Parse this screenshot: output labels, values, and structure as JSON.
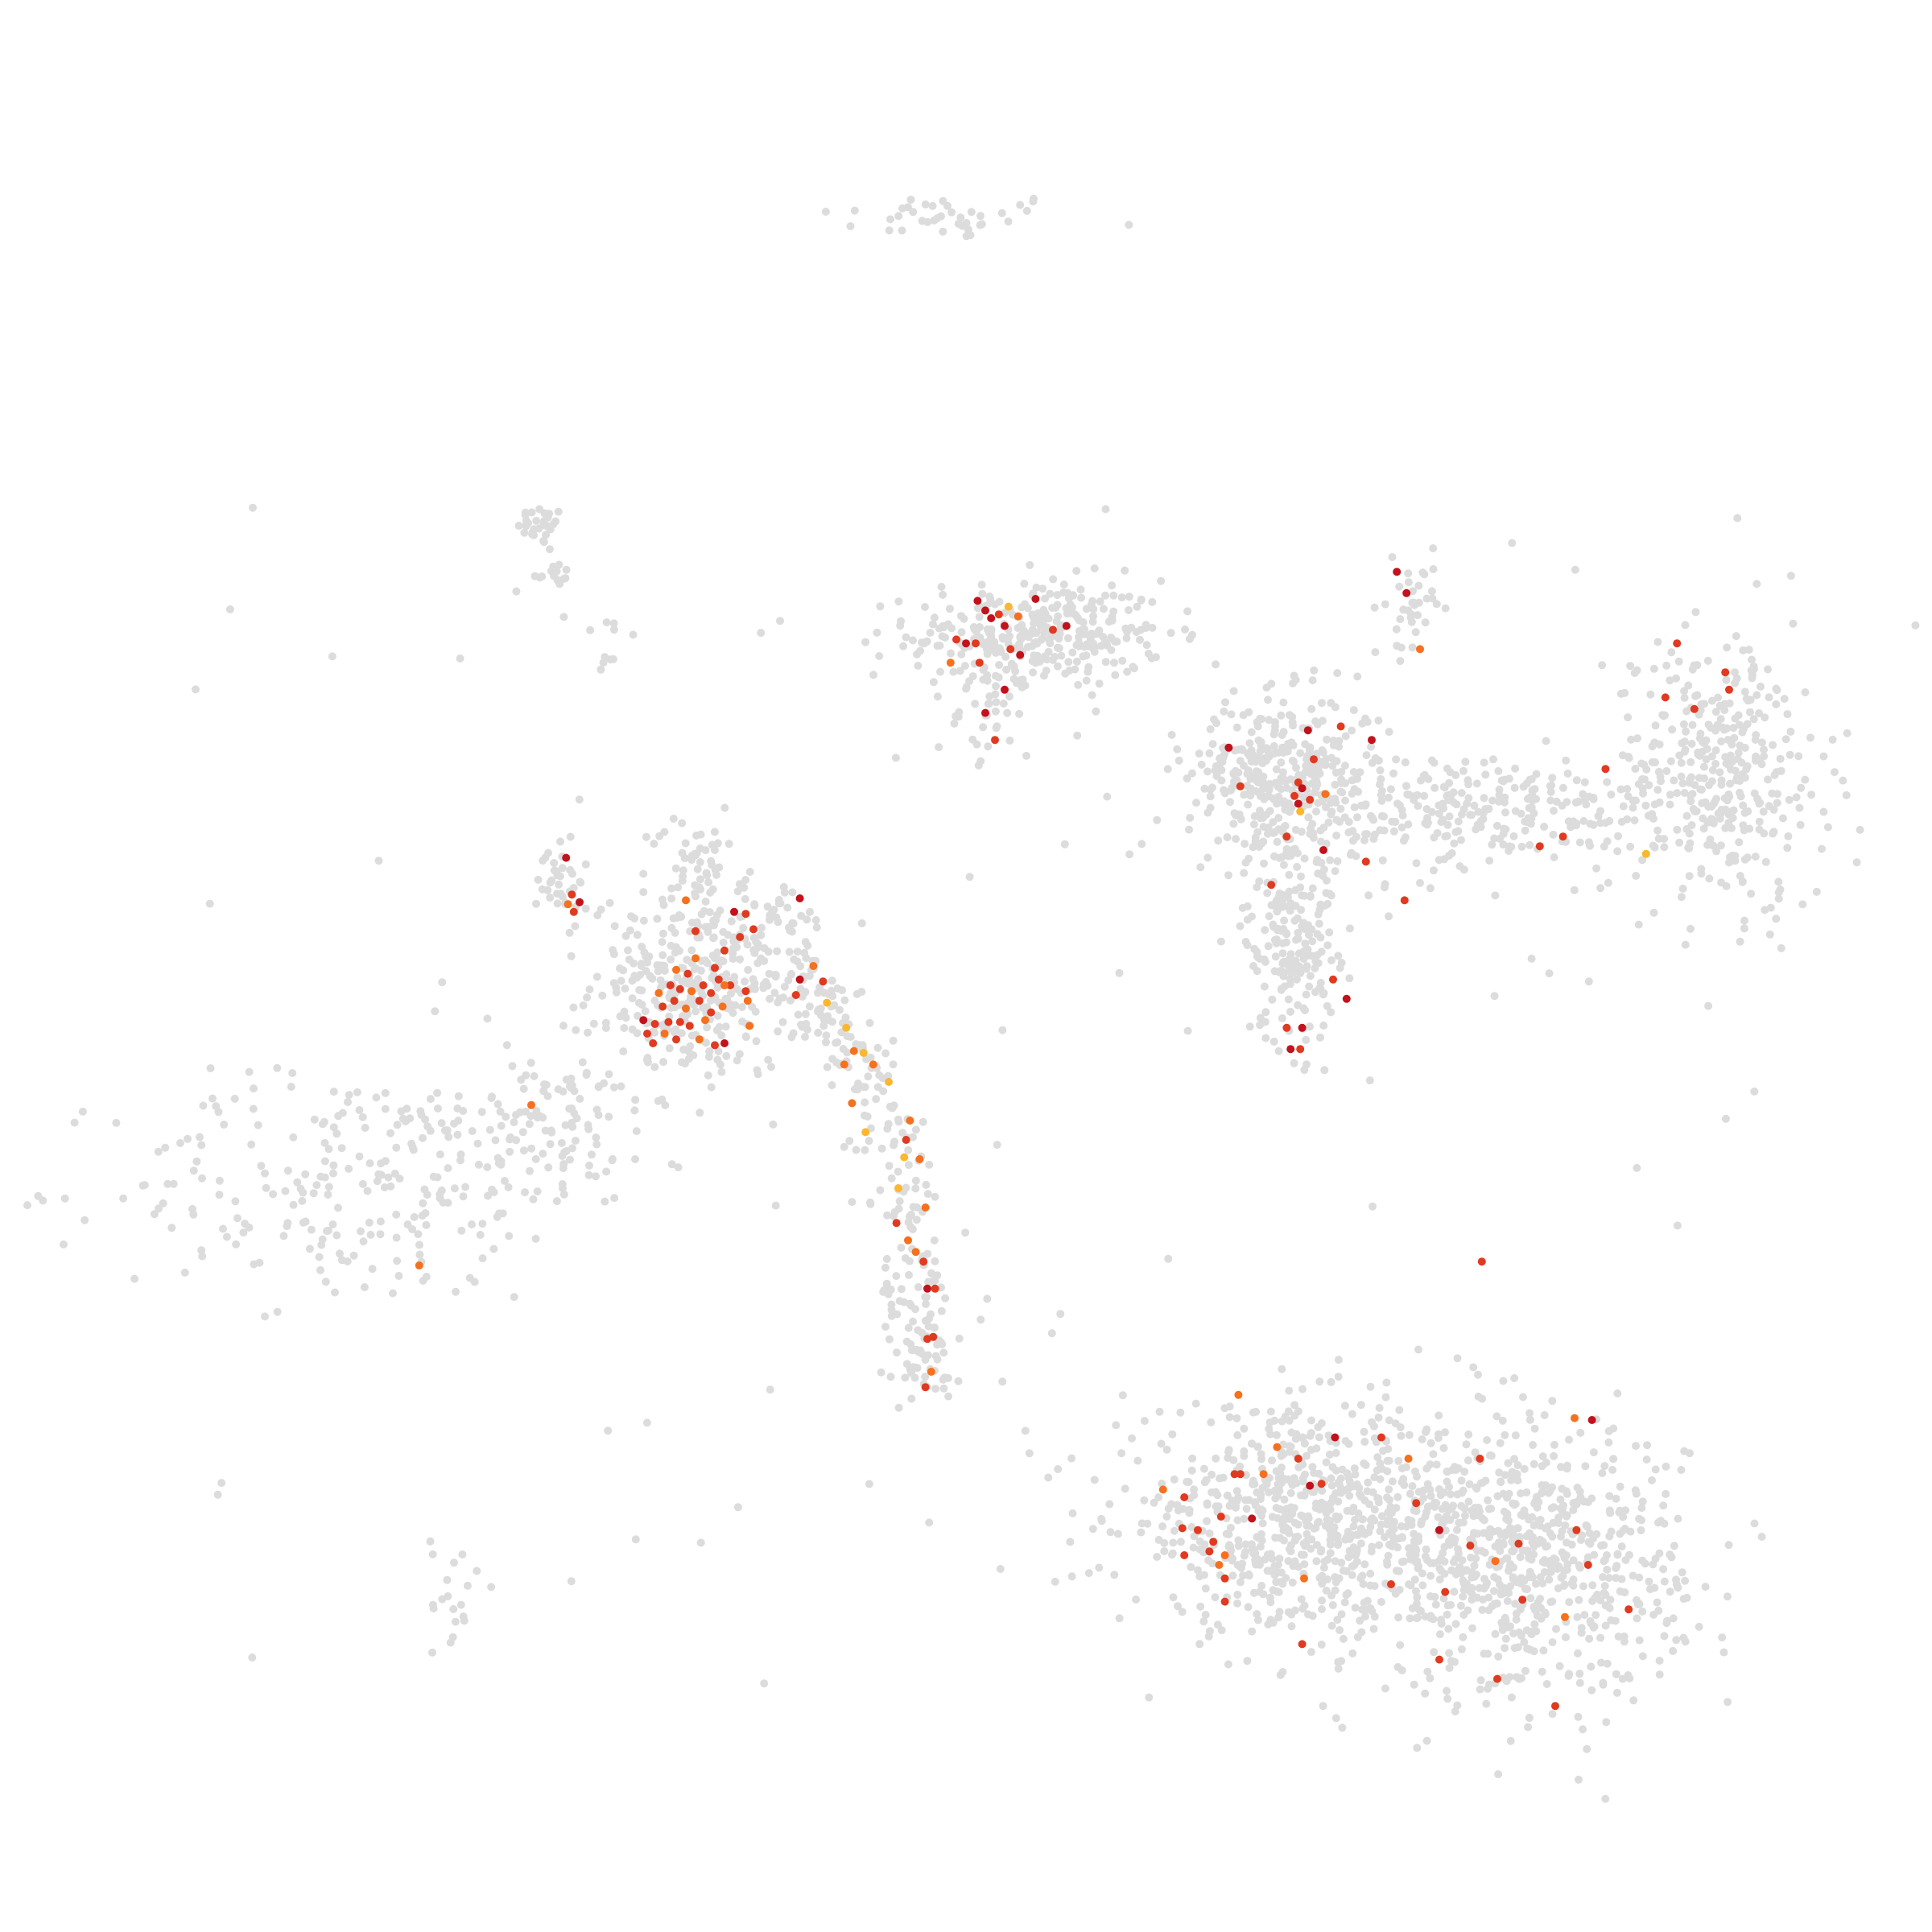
{
  "chart_data": {
    "type": "scatter",
    "title": "",
    "xlabel": "",
    "ylabel": "",
    "xlim": [
      0,
      1
    ],
    "ylim": [
      0,
      1
    ],
    "grid": false,
    "axes_visible": false,
    "legend": "none",
    "colors": {
      "background_cells": "#dcdcdc",
      "low": "#fbb72f",
      "mid": "#f5711f",
      "high": "#e03a20",
      "top": "#c2121c"
    },
    "background_clusters": [
      {
        "name": "top-strip",
        "cx": 0.49,
        "cy": 0.888,
        "sx": 0.034,
        "sy": 0.006,
        "n": 40
      },
      {
        "name": "upper-left-tip",
        "cx": 0.28,
        "cy": 0.728,
        "sx": 0.006,
        "sy": 0.005,
        "n": 30
      },
      {
        "name": "upper-left-tip-2",
        "cx": 0.286,
        "cy": 0.703,
        "sx": 0.005,
        "sy": 0.003,
        "n": 14
      },
      {
        "name": "upper-left-trail",
        "cx": 0.315,
        "cy": 0.667,
        "sx": 0.009,
        "sy": 0.012,
        "n": 10
      },
      {
        "name": "central-top-blob",
        "cx": 0.537,
        "cy": 0.672,
        "sx": 0.033,
        "sy": 0.014,
        "n": 320
      },
      {
        "name": "central-top-stem",
        "cx": 0.515,
        "cy": 0.634,
        "sx": 0.009,
        "sy": 0.012,
        "n": 40
      },
      {
        "name": "left-hub",
        "cx": 0.362,
        "cy": 0.49,
        "sx": 0.028,
        "sy": 0.024,
        "n": 360
      },
      {
        "name": "left-hub-top",
        "cx": 0.36,
        "cy": 0.555,
        "sx": 0.01,
        "sy": 0.012,
        "n": 45
      },
      {
        "name": "left-arm",
        "cx": 0.29,
        "cy": 0.545,
        "sx": 0.006,
        "sy": 0.012,
        "n": 35
      },
      {
        "name": "left-fan",
        "cx": 0.18,
        "cy": 0.385,
        "sx": 0.06,
        "sy": 0.03,
        "n": 220
      },
      {
        "name": "left-fan-upper",
        "cx": 0.28,
        "cy": 0.42,
        "sx": 0.03,
        "sy": 0.018,
        "n": 120
      },
      {
        "name": "bottom-left-strand",
        "cx": 0.235,
        "cy": 0.17,
        "sx": 0.006,
        "sy": 0.02,
        "n": 20
      },
      {
        "name": "upper-right-left-blob",
        "cx": 0.665,
        "cy": 0.6,
        "sx": 0.025,
        "sy": 0.02,
        "n": 360
      },
      {
        "name": "upper-right-stem",
        "cx": 0.668,
        "cy": 0.52,
        "sx": 0.012,
        "sy": 0.03,
        "n": 220
      },
      {
        "name": "upper-right-bridge",
        "cx": 0.77,
        "cy": 0.58,
        "sx": 0.045,
        "sy": 0.015,
        "n": 260
      },
      {
        "name": "upper-right-right-blob",
        "cx": 0.89,
        "cy": 0.6,
        "sx": 0.028,
        "sy": 0.035,
        "n": 360
      },
      {
        "name": "upper-right-spire",
        "cx": 0.73,
        "cy": 0.683,
        "sx": 0.006,
        "sy": 0.012,
        "n": 35
      },
      {
        "name": "bottom-right-left-lobe",
        "cx": 0.675,
        "cy": 0.213,
        "sx": 0.048,
        "sy": 0.028,
        "n": 720
      },
      {
        "name": "bottom-right-right-lobe",
        "cx": 0.79,
        "cy": 0.192,
        "sx": 0.04,
        "sy": 0.035,
        "n": 720
      }
    ],
    "background_curve": {
      "name": "arc-strand",
      "points": [
        [
          0.4,
          0.54
        ],
        [
          0.41,
          0.5
        ],
        [
          0.432,
          0.47
        ],
        [
          0.45,
          0.44
        ],
        [
          0.462,
          0.41
        ],
        [
          0.468,
          0.38
        ],
        [
          0.472,
          0.35
        ],
        [
          0.475,
          0.32
        ],
        [
          0.48,
          0.3
        ],
        [
          0.48,
          0.28
        ]
      ],
      "spread": 0.012,
      "n": 280
    },
    "background_scatter": {
      "xlim": [
        0.1,
        0.93
      ],
      "ylim": [
        0.12,
        0.74
      ],
      "n": 110
    },
    "highlighted_cells": [
      {
        "x": 0.506,
        "y": 0.689,
        "level": "top"
      },
      {
        "x": 0.51,
        "y": 0.684,
        "level": "top"
      },
      {
        "x": 0.513,
        "y": 0.68,
        "level": "top"
      },
      {
        "x": 0.517,
        "y": 0.682,
        "level": "high"
      },
      {
        "x": 0.52,
        "y": 0.676,
        "level": "top"
      },
      {
        "x": 0.522,
        "y": 0.686,
        "level": "low"
      },
      {
        "x": 0.527,
        "y": 0.681,
        "level": "mid"
      },
      {
        "x": 0.536,
        "y": 0.69,
        "level": "top"
      },
      {
        "x": 0.545,
        "y": 0.674,
        "level": "high"
      },
      {
        "x": 0.552,
        "y": 0.676,
        "level": "top"
      },
      {
        "x": 0.495,
        "y": 0.669,
        "level": "high"
      },
      {
        "x": 0.5,
        "y": 0.667,
        "level": "top"
      },
      {
        "x": 0.505,
        "y": 0.667,
        "level": "high"
      },
      {
        "x": 0.523,
        "y": 0.664,
        "level": "high"
      },
      {
        "x": 0.528,
        "y": 0.661,
        "level": "top"
      },
      {
        "x": 0.492,
        "y": 0.657,
        "level": "mid"
      },
      {
        "x": 0.507,
        "y": 0.657,
        "level": "high"
      },
      {
        "x": 0.52,
        "y": 0.643,
        "level": "top"
      },
      {
        "x": 0.51,
        "y": 0.631,
        "level": "top"
      },
      {
        "x": 0.515,
        "y": 0.617,
        "level": "high"
      },
      {
        "x": 0.293,
        "y": 0.556,
        "level": "top"
      },
      {
        "x": 0.296,
        "y": 0.537,
        "level": "high"
      },
      {
        "x": 0.3,
        "y": 0.533,
        "level": "top"
      },
      {
        "x": 0.297,
        "y": 0.528,
        "level": "high"
      },
      {
        "x": 0.294,
        "y": 0.532,
        "level": "mid"
      },
      {
        "x": 0.355,
        "y": 0.534,
        "level": "mid"
      },
      {
        "x": 0.36,
        "y": 0.518,
        "level": "high"
      },
      {
        "x": 0.38,
        "y": 0.528,
        "level": "top"
      },
      {
        "x": 0.386,
        "y": 0.527,
        "level": "high"
      },
      {
        "x": 0.39,
        "y": 0.519,
        "level": "high"
      },
      {
        "x": 0.414,
        "y": 0.535,
        "level": "top"
      },
      {
        "x": 0.383,
        "y": 0.515,
        "level": "high"
      },
      {
        "x": 0.375,
        "y": 0.508,
        "level": "high"
      },
      {
        "x": 0.36,
        "y": 0.504,
        "level": "mid"
      },
      {
        "x": 0.37,
        "y": 0.499,
        "level": "high"
      },
      {
        "x": 0.356,
        "y": 0.496,
        "level": "high"
      },
      {
        "x": 0.35,
        "y": 0.498,
        "level": "mid"
      },
      {
        "x": 0.364,
        "y": 0.49,
        "level": "high"
      },
      {
        "x": 0.358,
        "y": 0.487,
        "level": "mid"
      },
      {
        "x": 0.352,
        "y": 0.488,
        "level": "high"
      },
      {
        "x": 0.347,
        "y": 0.49,
        "level": "high"
      },
      {
        "x": 0.349,
        "y": 0.482,
        "level": "high"
      },
      {
        "x": 0.355,
        "y": 0.478,
        "level": "mid"
      },
      {
        "x": 0.362,
        "y": 0.482,
        "level": "high"
      },
      {
        "x": 0.368,
        "y": 0.486,
        "level": "high"
      },
      {
        "x": 0.343,
        "y": 0.479,
        "level": "high"
      },
      {
        "x": 0.341,
        "y": 0.486,
        "level": "mid"
      },
      {
        "x": 0.346,
        "y": 0.471,
        "level": "high"
      },
      {
        "x": 0.352,
        "y": 0.471,
        "level": "high"
      },
      {
        "x": 0.357,
        "y": 0.469,
        "level": "high"
      },
      {
        "x": 0.344,
        "y": 0.465,
        "level": "mid"
      },
      {
        "x": 0.35,
        "y": 0.462,
        "level": "high"
      },
      {
        "x": 0.339,
        "y": 0.47,
        "level": "high"
      },
      {
        "x": 0.333,
        "y": 0.472,
        "level": "top"
      },
      {
        "x": 0.338,
        "y": 0.46,
        "level": "high"
      },
      {
        "x": 0.335,
        "y": 0.465,
        "level": "high"
      },
      {
        "x": 0.368,
        "y": 0.476,
        "level": "high"
      },
      {
        "x": 0.374,
        "y": 0.479,
        "level": "mid"
      },
      {
        "x": 0.378,
        "y": 0.49,
        "level": "high"
      },
      {
        "x": 0.372,
        "y": 0.493,
        "level": "high"
      },
      {
        "x": 0.365,
        "y": 0.472,
        "level": "mid"
      },
      {
        "x": 0.375,
        "y": 0.49,
        "level": "mid"
      },
      {
        "x": 0.386,
        "y": 0.487,
        "level": "high"
      },
      {
        "x": 0.387,
        "y": 0.482,
        "level": "mid"
      },
      {
        "x": 0.362,
        "y": 0.462,
        "level": "mid"
      },
      {
        "x": 0.37,
        "y": 0.459,
        "level": "high"
      },
      {
        "x": 0.375,
        "y": 0.46,
        "level": "top"
      },
      {
        "x": 0.388,
        "y": 0.469,
        "level": "mid"
      },
      {
        "x": 0.414,
        "y": 0.493,
        "level": "top"
      },
      {
        "x": 0.421,
        "y": 0.5,
        "level": "mid"
      },
      {
        "x": 0.426,
        "y": 0.492,
        "level": "high"
      },
      {
        "x": 0.412,
        "y": 0.485,
        "level": "high"
      },
      {
        "x": 0.428,
        "y": 0.481,
        "level": "low"
      },
      {
        "x": 0.438,
        "y": 0.468,
        "level": "low"
      },
      {
        "x": 0.442,
        "y": 0.456,
        "level": "mid"
      },
      {
        "x": 0.447,
        "y": 0.455,
        "level": "low"
      },
      {
        "x": 0.437,
        "y": 0.449,
        "level": "mid"
      },
      {
        "x": 0.452,
        "y": 0.449,
        "level": "mid"
      },
      {
        "x": 0.46,
        "y": 0.44,
        "level": "low"
      },
      {
        "x": 0.441,
        "y": 0.429,
        "level": "mid"
      },
      {
        "x": 0.471,
        "y": 0.42,
        "level": "mid"
      },
      {
        "x": 0.448,
        "y": 0.414,
        "level": "low"
      },
      {
        "x": 0.469,
        "y": 0.41,
        "level": "high"
      },
      {
        "x": 0.468,
        "y": 0.401,
        "level": "low"
      },
      {
        "x": 0.476,
        "y": 0.4,
        "level": "mid"
      },
      {
        "x": 0.465,
        "y": 0.385,
        "level": "low"
      },
      {
        "x": 0.479,
        "y": 0.375,
        "level": "mid"
      },
      {
        "x": 0.464,
        "y": 0.367,
        "level": "high"
      },
      {
        "x": 0.47,
        "y": 0.358,
        "level": "mid"
      },
      {
        "x": 0.474,
        "y": 0.352,
        "level": "mid"
      },
      {
        "x": 0.478,
        "y": 0.347,
        "level": "high"
      },
      {
        "x": 0.48,
        "y": 0.333,
        "level": "top"
      },
      {
        "x": 0.484,
        "y": 0.333,
        "level": "high"
      },
      {
        "x": 0.48,
        "y": 0.307,
        "level": "high"
      },
      {
        "x": 0.483,
        "y": 0.308,
        "level": "high"
      },
      {
        "x": 0.482,
        "y": 0.29,
        "level": "mid"
      },
      {
        "x": 0.479,
        "y": 0.282,
        "level": "high"
      },
      {
        "x": 0.275,
        "y": 0.428,
        "level": "mid"
      },
      {
        "x": 0.217,
        "y": 0.345,
        "level": "mid"
      },
      {
        "x": 0.723,
        "y": 0.704,
        "level": "top"
      },
      {
        "x": 0.728,
        "y": 0.693,
        "level": "top"
      },
      {
        "x": 0.735,
        "y": 0.664,
        "level": "mid"
      },
      {
        "x": 0.636,
        "y": 0.613,
        "level": "top"
      },
      {
        "x": 0.642,
        "y": 0.593,
        "level": "high"
      },
      {
        "x": 0.677,
        "y": 0.622,
        "level": "top"
      },
      {
        "x": 0.68,
        "y": 0.607,
        "level": "high"
      },
      {
        "x": 0.694,
        "y": 0.624,
        "level": "high"
      },
      {
        "x": 0.71,
        "y": 0.617,
        "level": "top"
      },
      {
        "x": 0.672,
        "y": 0.595,
        "level": "high"
      },
      {
        "x": 0.674,
        "y": 0.592,
        "level": "top"
      },
      {
        "x": 0.67,
        "y": 0.588,
        "level": "high"
      },
      {
        "x": 0.672,
        "y": 0.584,
        "level": "top"
      },
      {
        "x": 0.678,
        "y": 0.586,
        "level": "high"
      },
      {
        "x": 0.686,
        "y": 0.589,
        "level": "mid"
      },
      {
        "x": 0.673,
        "y": 0.58,
        "level": "low"
      },
      {
        "x": 0.666,
        "y": 0.567,
        "level": "high"
      },
      {
        "x": 0.685,
        "y": 0.56,
        "level": "top"
      },
      {
        "x": 0.707,
        "y": 0.554,
        "level": "high"
      },
      {
        "x": 0.658,
        "y": 0.542,
        "level": "high"
      },
      {
        "x": 0.727,
        "y": 0.534,
        "level": "high"
      },
      {
        "x": 0.69,
        "y": 0.493,
        "level": "high"
      },
      {
        "x": 0.697,
        "y": 0.483,
        "level": "top"
      },
      {
        "x": 0.666,
        "y": 0.468,
        "level": "high"
      },
      {
        "x": 0.674,
        "y": 0.468,
        "level": "top"
      },
      {
        "x": 0.668,
        "y": 0.457,
        "level": "top"
      },
      {
        "x": 0.673,
        "y": 0.457,
        "level": "high"
      },
      {
        "x": 0.868,
        "y": 0.667,
        "level": "high"
      },
      {
        "x": 0.893,
        "y": 0.652,
        "level": "high"
      },
      {
        "x": 0.895,
        "y": 0.643,
        "level": "high"
      },
      {
        "x": 0.862,
        "y": 0.639,
        "level": "high"
      },
      {
        "x": 0.877,
        "y": 0.633,
        "level": "high"
      },
      {
        "x": 0.831,
        "y": 0.602,
        "level": "high"
      },
      {
        "x": 0.809,
        "y": 0.567,
        "level": "high"
      },
      {
        "x": 0.797,
        "y": 0.562,
        "level": "high"
      },
      {
        "x": 0.852,
        "y": 0.558,
        "level": "low"
      },
      {
        "x": 0.767,
        "y": 0.347,
        "level": "high"
      },
      {
        "x": 0.641,
        "y": 0.278,
        "level": "mid"
      },
      {
        "x": 0.691,
        "y": 0.256,
        "level": "top"
      },
      {
        "x": 0.715,
        "y": 0.256,
        "level": "high"
      },
      {
        "x": 0.661,
        "y": 0.251,
        "level": "mid"
      },
      {
        "x": 0.672,
        "y": 0.245,
        "level": "high"
      },
      {
        "x": 0.729,
        "y": 0.245,
        "level": "mid"
      },
      {
        "x": 0.766,
        "y": 0.245,
        "level": "high"
      },
      {
        "x": 0.639,
        "y": 0.237,
        "level": "high"
      },
      {
        "x": 0.642,
        "y": 0.237,
        "level": "high"
      },
      {
        "x": 0.654,
        "y": 0.237,
        "level": "mid"
      },
      {
        "x": 0.678,
        "y": 0.231,
        "level": "top"
      },
      {
        "x": 0.684,
        "y": 0.232,
        "level": "high"
      },
      {
        "x": 0.602,
        "y": 0.229,
        "level": "mid"
      },
      {
        "x": 0.613,
        "y": 0.225,
        "level": "high"
      },
      {
        "x": 0.733,
        "y": 0.222,
        "level": "high"
      },
      {
        "x": 0.632,
        "y": 0.215,
        "level": "high"
      },
      {
        "x": 0.648,
        "y": 0.214,
        "level": "top"
      },
      {
        "x": 0.612,
        "y": 0.209,
        "level": "high"
      },
      {
        "x": 0.62,
        "y": 0.208,
        "level": "high"
      },
      {
        "x": 0.745,
        "y": 0.208,
        "level": "top"
      },
      {
        "x": 0.816,
        "y": 0.208,
        "level": "high"
      },
      {
        "x": 0.628,
        "y": 0.202,
        "level": "high"
      },
      {
        "x": 0.761,
        "y": 0.2,
        "level": "high"
      },
      {
        "x": 0.786,
        "y": 0.201,
        "level": "high"
      },
      {
        "x": 0.613,
        "y": 0.195,
        "level": "high"
      },
      {
        "x": 0.626,
        "y": 0.197,
        "level": "high"
      },
      {
        "x": 0.634,
        "y": 0.195,
        "level": "mid"
      },
      {
        "x": 0.631,
        "y": 0.19,
        "level": "mid"
      },
      {
        "x": 0.774,
        "y": 0.192,
        "level": "mid"
      },
      {
        "x": 0.822,
        "y": 0.19,
        "level": "high"
      },
      {
        "x": 0.634,
        "y": 0.183,
        "level": "high"
      },
      {
        "x": 0.675,
        "y": 0.183,
        "level": "mid"
      },
      {
        "x": 0.72,
        "y": 0.18,
        "level": "high"
      },
      {
        "x": 0.748,
        "y": 0.176,
        "level": "high"
      },
      {
        "x": 0.788,
        "y": 0.172,
        "level": "high"
      },
      {
        "x": 0.634,
        "y": 0.171,
        "level": "high"
      },
      {
        "x": 0.843,
        "y": 0.167,
        "level": "high"
      },
      {
        "x": 0.81,
        "y": 0.163,
        "level": "mid"
      },
      {
        "x": 0.674,
        "y": 0.149,
        "level": "high"
      },
      {
        "x": 0.745,
        "y": 0.141,
        "level": "high"
      },
      {
        "x": 0.775,
        "y": 0.131,
        "level": "high"
      },
      {
        "x": 0.805,
        "y": 0.117,
        "level": "high"
      },
      {
        "x": 0.815,
        "y": 0.266,
        "level": "mid"
      },
      {
        "x": 0.824,
        "y": 0.265,
        "level": "top"
      }
    ]
  }
}
